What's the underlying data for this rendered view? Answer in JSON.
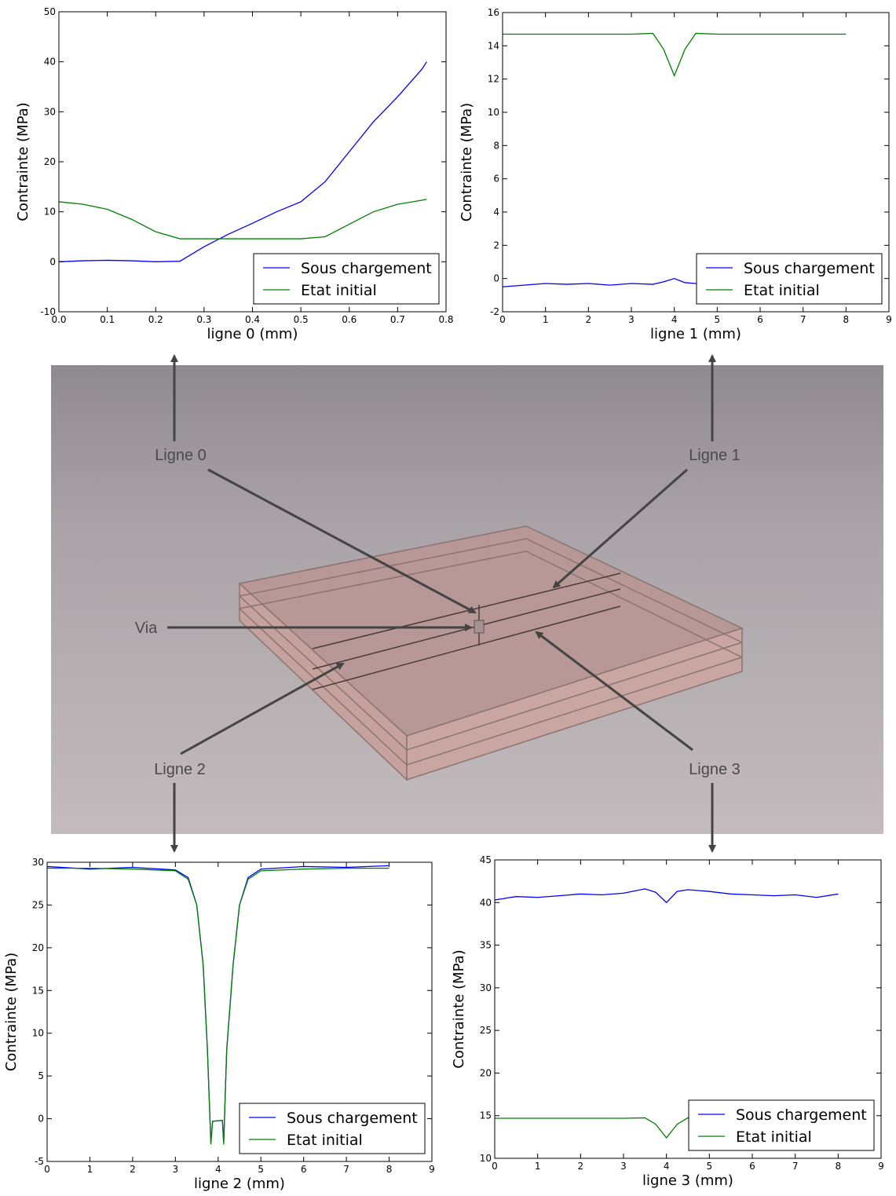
{
  "chart_data": [
    {
      "type": "line",
      "xlabel": "ligne 0 (mm)",
      "ylabel": "Contrainte (MPa)",
      "x": [
        0,
        0.05,
        0.1,
        0.15,
        0.2,
        0.25,
        0.3,
        0.35,
        0.4,
        0.45,
        0.5,
        0.55,
        0.6,
        0.65,
        0.7,
        0.75,
        0.76
      ],
      "series": [
        {
          "name": "Sous chargement",
          "color": "#0000ff",
          "values": [
            0,
            0.2,
            0.3,
            0.2,
            0,
            0.1,
            3,
            5.5,
            7.7,
            10,
            12,
            16,
            22,
            28,
            33,
            38.5,
            40
          ]
        },
        {
          "name": "Etat initial",
          "color": "#008000",
          "values": [
            12,
            11.5,
            10.5,
            8.5,
            6,
            4.6,
            4.6,
            4.6,
            4.6,
            4.6,
            4.6,
            5,
            7.5,
            10,
            11.5,
            12.3,
            12.5
          ]
        }
      ],
      "xlim": [
        0,
        0.8
      ],
      "ylim": [
        -10,
        50
      ],
      "xticks": [
        {
          "value": 0,
          "label": "0.0"
        },
        0.1,
        0.2,
        0.3,
        0.4,
        0.5,
        0.6,
        0.7,
        0.8
      ],
      "yticks": [
        -10,
        0,
        10,
        20,
        30,
        40,
        50
      ],
      "legend": "lower right"
    },
    {
      "type": "line",
      "xlabel": "ligne 1 (mm)",
      "ylabel": "Contrainte (MPa)",
      "x": [
        0,
        0.5,
        1,
        1.5,
        2,
        2.5,
        3,
        3.5,
        3.75,
        4,
        4.25,
        4.5,
        5,
        5.5,
        6,
        6.5,
        7,
        7.5,
        8
      ],
      "series": [
        {
          "name": "Sous chargement",
          "color": "#0000ff",
          "values": [
            -0.5,
            -0.4,
            -0.3,
            -0.35,
            -0.3,
            -0.4,
            -0.3,
            -0.35,
            -0.2,
            0,
            -0.25,
            -0.3,
            -0.35,
            -0.3,
            -0.4,
            -0.3,
            -0.35,
            -0.3,
            -0.4
          ]
        },
        {
          "name": "Etat initial",
          "color": "#008000",
          "values": [
            14.7,
            14.7,
            14.7,
            14.7,
            14.7,
            14.7,
            14.7,
            14.75,
            13.8,
            12.2,
            13.8,
            14.75,
            14.7,
            14.7,
            14.7,
            14.7,
            14.7,
            14.7,
            14.7
          ]
        }
      ],
      "xlim": [
        0,
        9
      ],
      "ylim": [
        -2,
        16
      ],
      "xticks": [
        0,
        1,
        2,
        3,
        4,
        5,
        6,
        7,
        8,
        9
      ],
      "yticks": [
        -2,
        0,
        2,
        4,
        6,
        8,
        10,
        12,
        14,
        16
      ],
      "legend": "lower right"
    },
    {
      "type": "line",
      "xlabel": "ligne 2 (mm)",
      "ylabel": "Contrainte (MPa)",
      "x": [
        0,
        1,
        2,
        3,
        3.3,
        3.5,
        3.65,
        3.75,
        3.83,
        3.87,
        4.1,
        4.13,
        4.2,
        4.35,
        4.5,
        4.7,
        5,
        6,
        7,
        8
      ],
      "series": [
        {
          "name": "Sous chargement",
          "color": "#0000ff",
          "values": [
            29.5,
            29.2,
            29.4,
            29.1,
            28.2,
            25,
            18,
            8,
            -2.8,
            -0.3,
            -0.2,
            -2.8,
            8,
            18,
            25,
            28.2,
            29.2,
            29.5,
            29.4,
            29.6
          ]
        },
        {
          "name": "Etat initial",
          "color": "#008000",
          "values": [
            29.3,
            29.3,
            29.2,
            29,
            28,
            25,
            18,
            8,
            -3,
            -0.3,
            -0.2,
            -3,
            8,
            18,
            25,
            28,
            29,
            29.2,
            29.3,
            29.3
          ]
        }
      ],
      "xlim": [
        0,
        9
      ],
      "ylim": [
        -5,
        30
      ],
      "xticks": [
        0,
        1,
        2,
        3,
        4,
        5,
        6,
        7,
        8,
        9
      ],
      "yticks": [
        -5,
        0,
        5,
        10,
        15,
        20,
        25,
        30
      ],
      "legend": "lower right"
    },
    {
      "type": "line",
      "xlabel": "ligne 3 (mm)",
      "ylabel": "Contrainte (MPa)",
      "x": [
        0,
        0.5,
        1,
        1.5,
        2,
        2.5,
        3,
        3.5,
        3.75,
        4,
        4.25,
        4.5,
        5,
        5.5,
        6,
        6.5,
        7,
        7.5,
        8
      ],
      "series": [
        {
          "name": "Sous chargement",
          "color": "#0000ff",
          "values": [
            40.3,
            40.7,
            40.6,
            40.8,
            41,
            40.9,
            41.1,
            41.6,
            41.2,
            40,
            41.3,
            41.5,
            41.3,
            41,
            40.9,
            40.8,
            40.9,
            40.6,
            41
          ]
        },
        {
          "name": "Etat initial",
          "color": "#008000",
          "values": [
            14.7,
            14.7,
            14.7,
            14.7,
            14.7,
            14.7,
            14.7,
            14.75,
            14,
            12.4,
            14,
            14.75,
            14.7,
            14.7,
            14.7,
            14.7,
            14.7,
            14.7,
            14.7
          ]
        }
      ],
      "xlim": [
        0,
        9
      ],
      "ylim": [
        10,
        45
      ],
      "xticks": [
        0,
        1,
        2,
        3,
        4,
        5,
        6,
        7,
        8,
        9
      ],
      "yticks": [
        10,
        15,
        20,
        25,
        30,
        35,
        40,
        45
      ],
      "legend": "lower right"
    }
  ],
  "render": {
    "labels": {
      "ligne0": "Ligne 0",
      "ligne1": "Ligne 1",
      "ligne2": "Ligne 2",
      "ligne3": "Ligne 3",
      "via": "Via"
    }
  }
}
